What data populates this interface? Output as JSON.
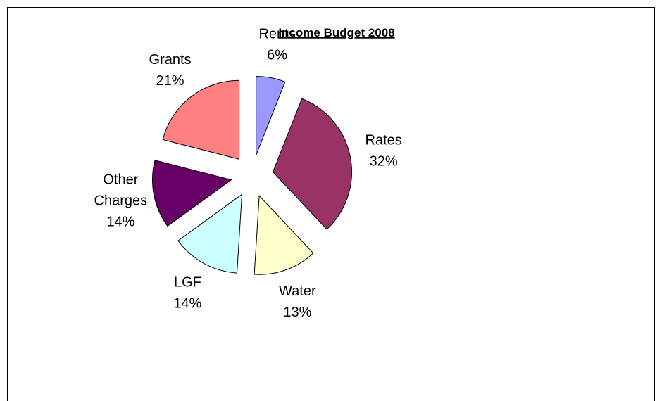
{
  "chart_data": {
    "type": "pie",
    "title": "Income Budget 2008",
    "slices": [
      {
        "label_lines": [
          "Rents"
        ],
        "percent_label": "6%",
        "value": 6,
        "color": "#9999ff"
      },
      {
        "label_lines": [
          "Rates"
        ],
        "percent_label": "32%",
        "value": 32,
        "color": "#993366"
      },
      {
        "label_lines": [
          "Water"
        ],
        "percent_label": "13%",
        "value": 13,
        "color": "#ffffcc"
      },
      {
        "label_lines": [
          "LGF"
        ],
        "percent_label": "14%",
        "value": 14,
        "color": "#ccffff"
      },
      {
        "label_lines": [
          "Other",
          "Charges"
        ],
        "percent_label": "14%",
        "value": 14,
        "color": "#660066"
      },
      {
        "label_lines": [
          "Grants"
        ],
        "percent_label": "21%",
        "value": 21,
        "color": "#ff8080"
      }
    ]
  }
}
